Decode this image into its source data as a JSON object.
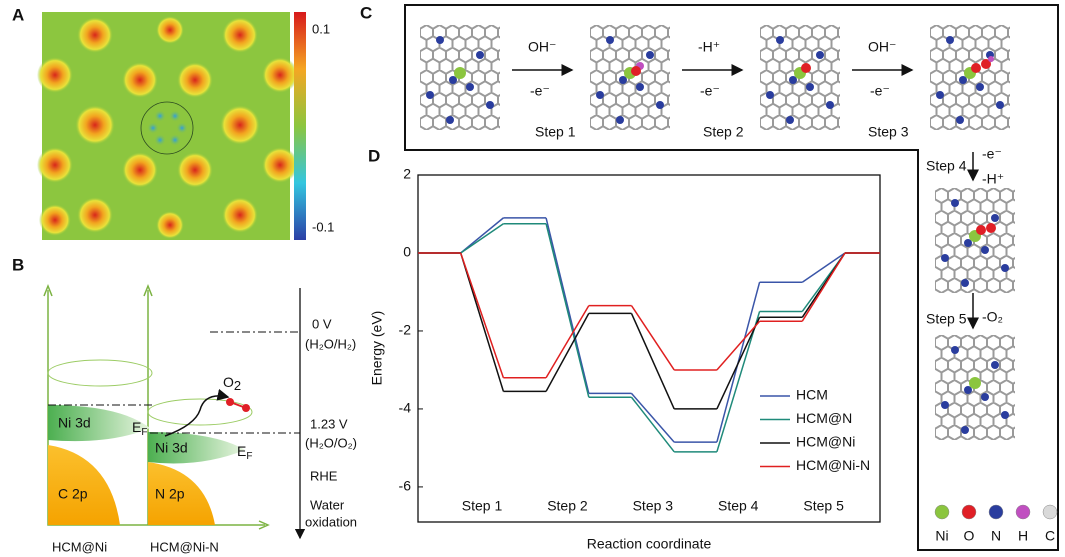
{
  "panels": {
    "a": {
      "label": "A",
      "colorbar_max": "0.1",
      "colorbar_min": "-0.1"
    },
    "b": {
      "label": "B",
      "left_name": "HCM@Ni",
      "right_name": "HCM@Ni-N",
      "ni3d_left": "Ni 3d",
      "ni3d_right": "Ni 3d",
      "c2p": "C 2p",
      "n2p": "N 2p",
      "ef_left": {
        "main": "E",
        "sub": "F"
      },
      "ef_right": {
        "main": "E",
        "sub": "F"
      },
      "o2": {
        "main": "O",
        "sub": "2"
      },
      "level0": "0 V",
      "level0_couple": "(H₂O/H₂)",
      "level1": "1.23 V",
      "level1_couple": "(H₂O/O₂)",
      "scale": "RHE",
      "direction_1": "Water",
      "direction_2": "oxidation"
    },
    "c": {
      "label": "C",
      "reagents": [
        {
          "top": "OH⁻",
          "bottom": "-e⁻"
        },
        {
          "top": "-H⁺",
          "bottom": "-e⁻"
        },
        {
          "top": "OH⁻",
          "bottom": "-e⁻"
        },
        {
          "top": "-e⁻",
          "bottom": "-H⁺"
        },
        {
          "top": "-O₂"
        }
      ],
      "steps": [
        "Step 1",
        "Step 2",
        "Step 3",
        "Step 4",
        "Step 5"
      ],
      "atoms": [
        {
          "name": "Ni",
          "color": "#8bc53f"
        },
        {
          "name": "O",
          "color": "#e01f26"
        },
        {
          "name": "N",
          "color": "#2a3d9e"
        },
        {
          "name": "H",
          "color": "#c04fc0"
        },
        {
          "name": "C",
          "color": "#d9d9d9"
        }
      ]
    }
  },
  "chart_data": {
    "type": "line",
    "label": "D",
    "ylabel": "Energy (eV)",
    "xlabel": "Reaction coordinate",
    "categories": [
      null,
      null,
      null,
      null,
      null,
      null
    ],
    "step_labels": [
      "Step 1",
      "Step 2",
      "Step 3",
      "Step 4",
      "Step 5"
    ],
    "ylim": [
      -6.9,
      2
    ],
    "yticks": [
      2,
      0,
      -2,
      -4,
      -6
    ],
    "legend": "lower right",
    "series": [
      {
        "name": "HCM",
        "color": "#3a55a8",
        "values": [
          0,
          0.9,
          -3.6,
          -4.85,
          -0.75,
          0
        ]
      },
      {
        "name": "HCM@N",
        "color": "#1f8a7a",
        "values": [
          0,
          0.75,
          -3.7,
          -5.1,
          -1.5,
          0
        ]
      },
      {
        "name": "HCM@Ni",
        "color": "#111111",
        "values": [
          0,
          -3.55,
          -1.55,
          -4.0,
          -1.65,
          0
        ]
      },
      {
        "name": "HCM@Ni-N",
        "color": "#e02020",
        "values": [
          0,
          -3.2,
          -1.35,
          -3.0,
          -1.75,
          0
        ]
      }
    ]
  }
}
